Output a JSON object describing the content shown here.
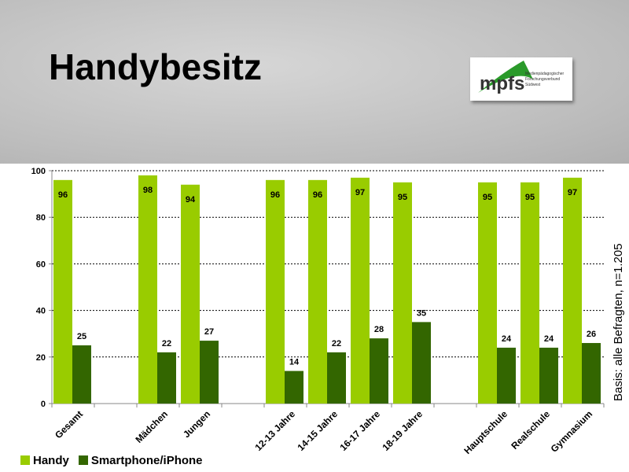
{
  "title": "Handybesitz",
  "logo": {
    "name": "mpfs",
    "subtitle": "Medienpädagogischer Forschungsverbund Südwest"
  },
  "basis": "Basis: alle Befragten, n=1.205",
  "chart_data": {
    "type": "bar",
    "title": "Handybesitz",
    "categories": [
      "Gesamt",
      "",
      "Mädchen",
      "Jungen",
      "",
      "12-13 Jahre",
      "14-15 Jahre",
      "16-17 Jahre",
      "18-19 Jahre",
      "",
      "Hauptschule",
      "Realschule",
      "Gymnasium"
    ],
    "series": [
      {
        "name": "Handy",
        "color": "#99cc00",
        "values": [
          96,
          null,
          98,
          94,
          null,
          96,
          96,
          97,
          95,
          null,
          95,
          95,
          97
        ]
      },
      {
        "name": "Smartphone/iPhone",
        "color": "#336600",
        "values": [
          25,
          null,
          22,
          27,
          null,
          14,
          22,
          28,
          35,
          null,
          24,
          24,
          26
        ]
      }
    ],
    "yticks": [
      "0",
      "20",
      "40",
      "60",
      "80",
      "100"
    ],
    "ylim": [
      0,
      100
    ],
    "grid": true,
    "legend": "bottom-left"
  }
}
